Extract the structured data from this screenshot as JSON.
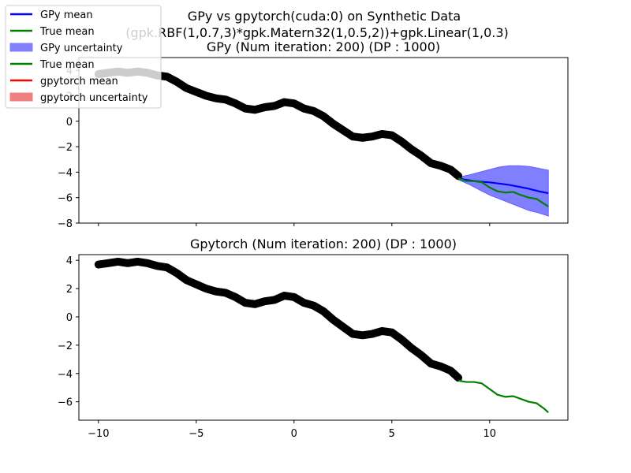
{
  "figure": {
    "suptitle_line1": "GPy vs gpytorch(cuda:0) on Synthetic Data",
    "suptitle_line2": "(gpk.RBF(1,0.7,3)*gpk.Matern32(1,0.5,2))+gpk.Linear(1,0.3)"
  },
  "colors": {
    "gpy_mean": "#0000ff",
    "true_mean": "#008000",
    "gpy_uncertainty": "#8080ff",
    "gpytorch_mean": "#ff0000",
    "gpytorch_uncertainty": "#f08080",
    "train_points": "#000000"
  },
  "legend": {
    "placement": "upper-left",
    "entries": [
      {
        "label": "GPy mean",
        "kind": "line",
        "color": "#0000ff"
      },
      {
        "label": "True mean",
        "kind": "line",
        "color": "#008000"
      },
      {
        "label": "GPy uncertainty",
        "kind": "patch",
        "color": "#8080ff"
      },
      {
        "label": "True mean",
        "kind": "line",
        "color": "#008000"
      },
      {
        "label": "gpytorch mean",
        "kind": "line",
        "color": "#ff0000"
      },
      {
        "label": "gpytorch uncertainty",
        "kind": "patch",
        "color": "#f08080"
      }
    ]
  },
  "chart_data": [
    {
      "type": "line",
      "title": "GPy (Num iteration: 200) (DP : 1000)",
      "xlim": [
        -11,
        14
      ],
      "ylim": [
        -8,
        5
      ],
      "xticks": [
        -10,
        -5,
        0,
        5,
        10
      ],
      "yticks": [
        -8,
        -6,
        -4,
        -2,
        0,
        2,
        4
      ],
      "show_xtick_labels": false,
      "train_data": {
        "x": [
          -10,
          -9.5,
          -9,
          -8.5,
          -8,
          -7.5,
          -7,
          -6.5,
          -6,
          -5.5,
          -5,
          -4.5,
          -4,
          -3.5,
          -3,
          -2.5,
          -2,
          -1.5,
          -1,
          -0.5,
          0,
          0.5,
          1,
          1.5,
          2,
          2.5,
          3,
          3.5,
          4,
          4.5,
          5,
          5.5,
          6,
          6.5,
          7,
          7.5,
          8,
          8.4
        ],
        "y": [
          3.7,
          3.8,
          3.9,
          3.8,
          3.9,
          3.8,
          3.6,
          3.5,
          3.1,
          2.6,
          2.3,
          2.0,
          1.8,
          1.7,
          1.4,
          1.0,
          0.9,
          1.1,
          1.2,
          1.5,
          1.4,
          1.0,
          0.8,
          0.4,
          -0.2,
          -0.7,
          -1.2,
          -1.3,
          -1.2,
          -1.0,
          -1.1,
          -1.6,
          -2.2,
          -2.7,
          -3.3,
          -3.5,
          -3.8,
          -4.3
        ]
      },
      "series": [
        {
          "name": "GPy mean",
          "color": "#0000ff",
          "x": [
            8.4,
            9,
            9.5,
            10,
            10.5,
            11,
            11.5,
            12,
            12.5,
            13
          ],
          "y": [
            -4.5,
            -4.65,
            -4.75,
            -4.8,
            -4.9,
            -5.0,
            -5.15,
            -5.3,
            -5.5,
            -5.65
          ]
        },
        {
          "name": "True mean",
          "color": "#008000",
          "x": [
            8.4,
            8.8,
            9.2,
            9.6,
            10,
            10.4,
            10.8,
            11.2,
            11.6,
            12,
            12.4,
            12.8,
            13
          ],
          "y": [
            -4.5,
            -4.7,
            -4.7,
            -4.8,
            -5.2,
            -5.5,
            -5.6,
            -5.55,
            -5.8,
            -6.0,
            -6.1,
            -6.5,
            -6.7
          ]
        }
      ],
      "bands": [
        {
          "name": "GPy uncertainty",
          "color": "#8080ff",
          "x": [
            8.4,
            9,
            9.5,
            10,
            10.5,
            11,
            11.5,
            12,
            12.5,
            13
          ],
          "upper": [
            -4.4,
            -4.2,
            -4.0,
            -3.8,
            -3.6,
            -3.5,
            -3.5,
            -3.55,
            -3.7,
            -3.85
          ],
          "lower": [
            -4.6,
            -5.0,
            -5.4,
            -5.8,
            -6.1,
            -6.4,
            -6.7,
            -7.0,
            -7.2,
            -7.45
          ]
        }
      ]
    },
    {
      "type": "line",
      "title": "Gpytorch (Num iteration: 200) (DP : 1000)",
      "xlim": [
        -11,
        14
      ],
      "ylim": [
        -7.3,
        4.4
      ],
      "xticks": [
        -10,
        -5,
        0,
        5,
        10
      ],
      "yticks": [
        -6,
        -4,
        -2,
        0,
        2,
        4
      ],
      "show_xtick_labels": true,
      "train_data": {
        "x": [
          -10,
          -9.5,
          -9,
          -8.5,
          -8,
          -7.5,
          -7,
          -6.5,
          -6,
          -5.5,
          -5,
          -4.5,
          -4,
          -3.5,
          -3,
          -2.5,
          -2,
          -1.5,
          -1,
          -0.5,
          0,
          0.5,
          1,
          1.5,
          2,
          2.5,
          3,
          3.5,
          4,
          4.5,
          5,
          5.5,
          6,
          6.5,
          7,
          7.5,
          8,
          8.4
        ],
        "y": [
          3.7,
          3.8,
          3.9,
          3.8,
          3.9,
          3.8,
          3.6,
          3.5,
          3.1,
          2.6,
          2.3,
          2.0,
          1.8,
          1.7,
          1.4,
          1.0,
          0.9,
          1.1,
          1.2,
          1.5,
          1.4,
          1.0,
          0.8,
          0.4,
          -0.2,
          -0.7,
          -1.2,
          -1.3,
          -1.2,
          -1.0,
          -1.1,
          -1.6,
          -2.2,
          -2.7,
          -3.3,
          -3.5,
          -3.8,
          -4.3
        ]
      },
      "series": [
        {
          "name": "True mean",
          "color": "#008000",
          "x": [
            8.4,
            8.8,
            9.2,
            9.6,
            10,
            10.4,
            10.8,
            11.2,
            11.6,
            12,
            12.4,
            12.8,
            13
          ],
          "y": [
            -4.5,
            -4.6,
            -4.6,
            -4.7,
            -5.1,
            -5.5,
            -5.65,
            -5.6,
            -5.8,
            -6.0,
            -6.1,
            -6.5,
            -6.75
          ]
        }
      ],
      "bands": []
    }
  ]
}
